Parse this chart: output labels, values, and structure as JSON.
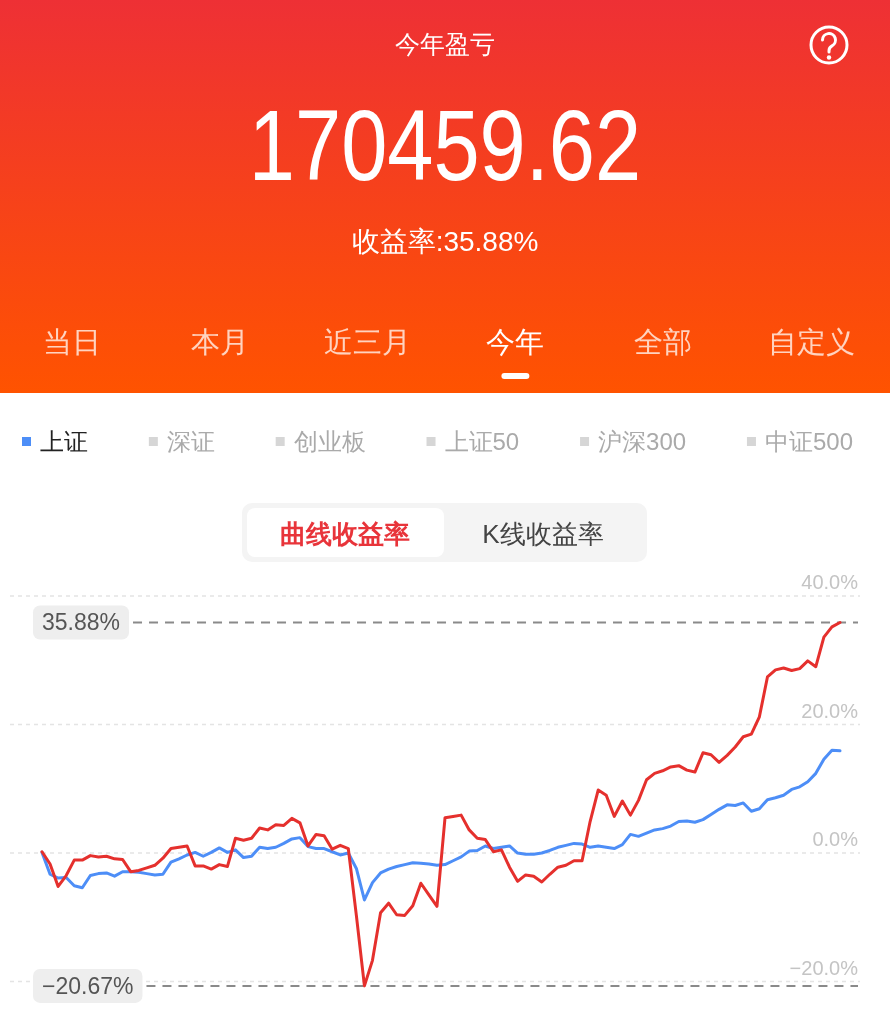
{
  "chart_data": {
    "type": "line",
    "title": "今年盈亏",
    "subtitle": "170459.62",
    "annotations": [
      "收益率:35.88%",
      "当日",
      "本月",
      "近三月",
      "今年",
      "全部",
      "自定义",
      "深证",
      "创业板",
      "上证50",
      "沪深300",
      "中证500",
      "曲线收益率",
      "K线收益率"
    ],
    "categories": [
      null,
      null,
      null,
      null,
      null,
      null,
      null,
      null,
      null,
      null,
      null,
      null,
      null,
      null,
      null,
      null,
      null,
      null,
      null,
      null,
      null,
      null,
      null,
      null,
      null,
      null,
      null,
      null,
      null,
      null,
      null,
      null,
      null,
      null,
      null,
      null,
      null,
      null,
      null,
      null,
      null,
      null,
      null,
      null,
      null,
      null,
      null,
      null,
      null,
      null,
      null,
      null,
      null,
      null,
      null,
      null,
      null,
      null,
      null,
      null,
      null,
      null,
      null,
      null,
      null,
      null,
      null,
      null,
      null,
      null,
      null,
      null,
      null,
      null,
      null,
      null,
      null,
      null,
      null,
      null,
      null,
      null,
      null,
      null,
      null,
      null,
      null,
      null,
      null,
      null,
      null,
      null,
      null,
      null,
      null,
      null,
      null,
      null,
      null,
      null
    ],
    "series": [
      {
        "name": "上证",
        "color": "#4d8ef7",
        "values": [
          0.1,
          -3.3,
          -3.9,
          -3.8,
          -5.1,
          -5.4,
          -3.5,
          -3.2,
          -3.1,
          -3.6,
          -2.9,
          -2.9,
          -3.0,
          -3.2,
          -3.4,
          -3.3,
          -1.4,
          -0.9,
          -0.3,
          0.1,
          -0.5,
          0.1,
          0.8,
          0.1,
          0.5,
          -0.7,
          -0.5,
          0.9,
          0.7,
          0.9,
          1.5,
          2.2,
          2.4,
          1.0,
          0.7,
          0.7,
          0.2,
          -0.3,
          0.0,
          -2.4,
          -7.3,
          -4.6,
          -3.1,
          -2.5,
          -2.1,
          -1.8,
          -1.5,
          -1.6,
          -1.7,
          -1.9,
          -1.8,
          -1.2,
          -0.6,
          0.3,
          0.4,
          1.1,
          0.7,
          0.9,
          1.1,
          0.0,
          -0.2,
          -0.2,
          0.0,
          0.4,
          0.9,
          1.2,
          1.5,
          1.4,
          0.9,
          1.1,
          0.9,
          0.7,
          1.3,
          2.9,
          2.6,
          3.1,
          3.6,
          3.8,
          4.2,
          4.9,
          5.0,
          4.8,
          5.2,
          6.0,
          6.8,
          7.5,
          7.4,
          7.8,
          6.5,
          6.9,
          8.3,
          8.6,
          9.0,
          9.9,
          10.3,
          11.1,
          12.4,
          14.6,
          16.0,
          15.9
        ]
      },
      {
        "color": "#e5302d",
        "values": [
          0.2,
          -1.7,
          -5.2,
          -3.5,
          -1.1,
          -1.1,
          -0.4,
          -0.6,
          -0.5,
          -0.9,
          -1.0,
          -2.9,
          -2.7,
          -2.3,
          -1.9,
          -0.8,
          0.7,
          0.9,
          1.1,
          -2.0,
          -2.0,
          -2.5,
          -1.8,
          -2.1,
          2.3,
          2.0,
          2.3,
          3.9,
          3.6,
          4.4,
          4.3,
          5.4,
          4.7,
          1.1,
          2.9,
          2.7,
          0.6,
          1.2,
          0.7,
          -9.7,
          -20.67,
          -16.7,
          -9.3,
          -7.8,
          -9.6,
          -9.7,
          -8.2,
          -4.7,
          -6.5,
          -8.3,
          5.5,
          5.7,
          5.9,
          3.6,
          2.3,
          2.1,
          0.2,
          0.5,
          -2.2,
          -4.4,
          -3.4,
          -3.6,
          -4.5,
          -3.3,
          -2.2,
          -1.9,
          -1.2,
          -1.2,
          4.9,
          9.8,
          9.0,
          5.7,
          8.1,
          5.9,
          8.2,
          11.4,
          12.4,
          12.8,
          13.4,
          13.6,
          12.9,
          12.6,
          15.6,
          15.3,
          14.1,
          15.2,
          16.5,
          18.1,
          18.5,
          21.2,
          27.4,
          28.5,
          28.8,
          28.4,
          28.7,
          29.9,
          29.0,
          33.6,
          35.2,
          35.88
        ]
      }
    ],
    "ylim": [
      -21,
      40
    ],
    "yticks": [
      {
        "value": 40,
        "label": "40.0%"
      },
      {
        "value": 20,
        "label": "20.0%"
      },
      {
        "value": 0,
        "label": "0.0%"
      },
      {
        "value": -20,
        "label": "−20.0%"
      }
    ],
    "ref_lines": [
      {
        "axis": "y",
        "value": 35.88,
        "label": "35.88%",
        "color": "#8a8a8a",
        "line_style": "dashed"
      },
      {
        "axis": "y",
        "value": -20.67,
        "label": "−20.67%",
        "color": "#8a8a8a",
        "line_style": "dashed"
      }
    ],
    "grid": "y",
    "legend": "top left"
  }
}
